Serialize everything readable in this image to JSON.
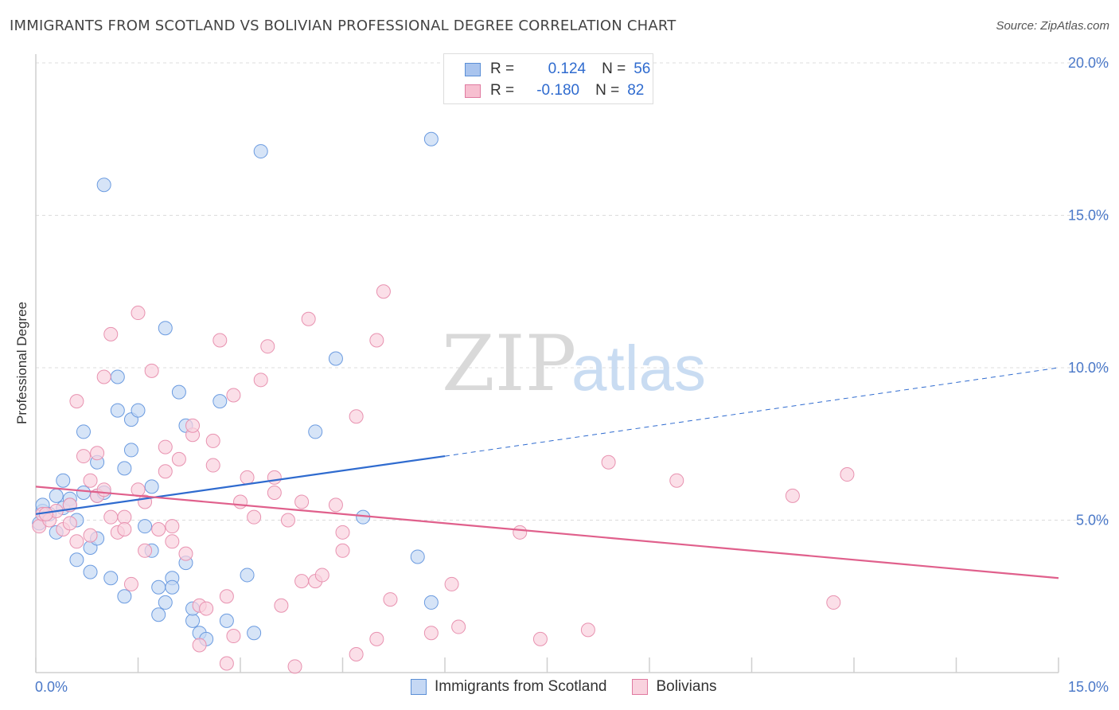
{
  "title": "IMMIGRANTS FROM SCOTLAND VS BOLIVIAN PROFESSIONAL DEGREE CORRELATION CHART",
  "source": "Source: ZipAtlas.com",
  "watermark": {
    "zip": "ZIP",
    "atlas": "atlas"
  },
  "legend": {
    "rows": [
      {
        "r_label": "R =",
        "r_value": "0.124",
        "n_label": "N =",
        "n_value": "56",
        "color": "#a9c4ee",
        "border": "#5b8fd6"
      },
      {
        "r_label": "R =",
        "r_value": "-0.180",
        "n_label": "N =",
        "n_value": "82",
        "color": "#f7bfd0",
        "border": "#e07aa0"
      }
    ]
  },
  "bottom_legend": [
    {
      "label": "Immigrants from Scotland",
      "color": "#c5d8f4",
      "border": "#5b8fd6"
    },
    {
      "label": "Bolivians",
      "color": "#f9d2de",
      "border": "#e07aa0"
    }
  ],
  "chart_data": {
    "type": "scatter",
    "title": "IMMIGRANTS FROM SCOTLAND VS BOLIVIAN PROFESSIONAL DEGREE CORRELATION CHART",
    "xlabel": "",
    "ylabel": "Professional Degree",
    "xlim": [
      0,
      15
    ],
    "ylim": [
      0,
      20
    ],
    "x_tick_labels": [
      "0.0%",
      "15.0%"
    ],
    "y_tick_labels": [
      "5.0%",
      "10.0%",
      "15.0%",
      "20.0%"
    ],
    "y_ticks": [
      5,
      10,
      15,
      20
    ],
    "grid": true,
    "series": [
      {
        "name": "Immigrants from Scotland",
        "color": "#6b9be0",
        "fill": "#c5d8f4",
        "trend": {
          "x": [
            0,
            6
          ],
          "y": [
            5.2,
            7.1
          ],
          "dashed_to": [
            15,
            10.0
          ],
          "color": "#2f6bcf"
        },
        "points": [
          [
            0.1,
            5.3
          ],
          [
            0.1,
            5.5
          ],
          [
            0.2,
            5.2
          ],
          [
            0.3,
            5.8
          ],
          [
            0.3,
            4.6
          ],
          [
            0.4,
            5.4
          ],
          [
            0.4,
            6.3
          ],
          [
            0.5,
            5.7
          ],
          [
            0.5,
            5.5
          ],
          [
            0.6,
            5.0
          ],
          [
            0.6,
            3.7
          ],
          [
            0.7,
            7.9
          ],
          [
            0.7,
            5.9
          ],
          [
            0.8,
            4.1
          ],
          [
            0.8,
            3.3
          ],
          [
            0.9,
            5.8
          ],
          [
            0.9,
            4.4
          ],
          [
            0.9,
            6.9
          ],
          [
            1.0,
            5.9
          ],
          [
            1.0,
            16.0
          ],
          [
            1.1,
            3.1
          ],
          [
            1.2,
            8.6
          ],
          [
            1.2,
            9.7
          ],
          [
            1.3,
            2.5
          ],
          [
            1.3,
            6.7
          ],
          [
            1.4,
            7.3
          ],
          [
            1.4,
            8.3
          ],
          [
            1.5,
            8.6
          ],
          [
            1.6,
            4.8
          ],
          [
            1.7,
            6.1
          ],
          [
            1.7,
            4.0
          ],
          [
            1.8,
            2.8
          ],
          [
            1.8,
            1.9
          ],
          [
            1.9,
            11.3
          ],
          [
            1.9,
            2.3
          ],
          [
            2.0,
            3.1
          ],
          [
            2.0,
            2.8
          ],
          [
            2.1,
            9.2
          ],
          [
            2.2,
            3.6
          ],
          [
            2.2,
            8.1
          ],
          [
            2.3,
            1.7
          ],
          [
            2.3,
            2.1
          ],
          [
            2.4,
            1.3
          ],
          [
            2.5,
            1.1
          ],
          [
            2.7,
            8.9
          ],
          [
            2.8,
            1.7
          ],
          [
            3.1,
            3.2
          ],
          [
            3.2,
            1.3
          ],
          [
            3.3,
            17.1
          ],
          [
            4.1,
            7.9
          ],
          [
            4.4,
            10.3
          ],
          [
            4.8,
            5.1
          ],
          [
            5.6,
            3.8
          ],
          [
            5.8,
            2.3
          ],
          [
            5.8,
            17.5
          ],
          [
            0.05,
            4.9
          ]
        ]
      },
      {
        "name": "Bolivians",
        "color": "#e892b0",
        "fill": "#f9d2de",
        "trend": {
          "x": [
            0,
            15
          ],
          "y": [
            6.1,
            3.1
          ],
          "color": "#e0608c"
        },
        "points": [
          [
            0.05,
            4.8
          ],
          [
            0.1,
            5.2
          ],
          [
            0.2,
            5.0
          ],
          [
            0.3,
            5.3
          ],
          [
            0.4,
            4.7
          ],
          [
            0.5,
            5.5
          ],
          [
            0.5,
            4.9
          ],
          [
            0.6,
            4.3
          ],
          [
            0.6,
            8.9
          ],
          [
            0.7,
            7.1
          ],
          [
            0.8,
            6.3
          ],
          [
            0.8,
            4.5
          ],
          [
            0.9,
            7.2
          ],
          [
            0.9,
            5.8
          ],
          [
            1.0,
            9.7
          ],
          [
            1.0,
            6.0
          ],
          [
            1.1,
            5.1
          ],
          [
            1.1,
            11.1
          ],
          [
            1.2,
            4.6
          ],
          [
            1.3,
            5.1
          ],
          [
            1.3,
            4.7
          ],
          [
            1.4,
            2.9
          ],
          [
            1.5,
            11.8
          ],
          [
            1.5,
            6.0
          ],
          [
            1.6,
            5.6
          ],
          [
            1.6,
            4.0
          ],
          [
            1.7,
            9.9
          ],
          [
            1.8,
            4.7
          ],
          [
            1.9,
            6.6
          ],
          [
            1.9,
            7.4
          ],
          [
            2.0,
            4.3
          ],
          [
            2.0,
            4.8
          ],
          [
            2.1,
            7.0
          ],
          [
            2.2,
            3.9
          ],
          [
            2.3,
            7.8
          ],
          [
            2.3,
            8.1
          ],
          [
            2.4,
            2.2
          ],
          [
            2.4,
            0.9
          ],
          [
            2.5,
            2.1
          ],
          [
            2.6,
            6.8
          ],
          [
            2.6,
            7.6
          ],
          [
            2.7,
            10.9
          ],
          [
            2.8,
            2.5
          ],
          [
            2.8,
            0.3
          ],
          [
            2.9,
            1.2
          ],
          [
            2.9,
            9.1
          ],
          [
            3.0,
            5.6
          ],
          [
            3.1,
            6.4
          ],
          [
            3.2,
            5.1
          ],
          [
            3.3,
            9.6
          ],
          [
            3.4,
            10.7
          ],
          [
            3.5,
            6.4
          ],
          [
            3.5,
            5.9
          ],
          [
            3.6,
            2.2
          ],
          [
            3.7,
            5.0
          ],
          [
            3.8,
            0.2
          ],
          [
            3.9,
            3.0
          ],
          [
            3.9,
            5.6
          ],
          [
            4.0,
            11.6
          ],
          [
            4.1,
            3.0
          ],
          [
            4.2,
            3.2
          ],
          [
            4.4,
            5.5
          ],
          [
            4.5,
            4.0
          ],
          [
            4.5,
            4.6
          ],
          [
            4.7,
            8.4
          ],
          [
            4.7,
            0.6
          ],
          [
            5.0,
            1.1
          ],
          [
            5.0,
            10.9
          ],
          [
            5.1,
            12.5
          ],
          [
            5.2,
            2.4
          ],
          [
            5.8,
            1.3
          ],
          [
            6.1,
            2.9
          ],
          [
            6.2,
            1.5
          ],
          [
            7.1,
            4.6
          ],
          [
            7.4,
            1.1
          ],
          [
            8.1,
            1.4
          ],
          [
            8.4,
            6.9
          ],
          [
            9.4,
            6.3
          ],
          [
            11.1,
            5.8
          ],
          [
            11.7,
            2.3
          ],
          [
            11.9,
            6.5
          ],
          [
            0.15,
            5.2
          ]
        ]
      }
    ]
  }
}
